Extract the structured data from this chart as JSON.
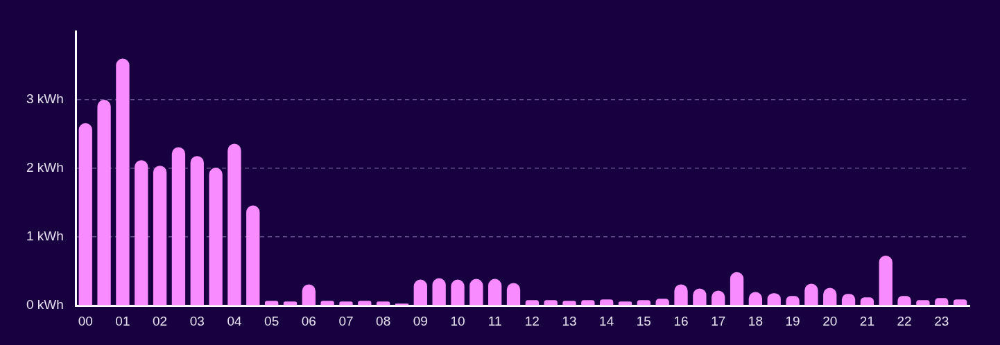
{
  "chart_data": {
    "type": "bar",
    "categories": [
      "00",
      null,
      "01",
      null,
      "02",
      null,
      "03",
      null,
      "04",
      null,
      "05",
      null,
      "06",
      null,
      "07",
      null,
      "08",
      null,
      "09",
      null,
      "10",
      null,
      "11",
      null,
      "12",
      null,
      "13",
      null,
      "14",
      null,
      "15",
      null,
      "16",
      null,
      "17",
      null,
      "18",
      null,
      "19",
      null,
      "20",
      null,
      "21",
      null,
      "22",
      null,
      "23",
      null
    ],
    "values": [
      2.66,
      3.0,
      3.6,
      2.12,
      2.04,
      2.31,
      2.18,
      2.01,
      2.36,
      1.46,
      0.07,
      0.06,
      0.31,
      0.07,
      0.06,
      0.07,
      0.06,
      0.03,
      0.38,
      0.4,
      0.38,
      0.39,
      0.39,
      0.33,
      0.08,
      0.08,
      0.07,
      0.08,
      0.09,
      0.06,
      0.08,
      0.1,
      0.31,
      0.25,
      0.22,
      0.49,
      0.2,
      0.18,
      0.14,
      0.32,
      0.26,
      0.17,
      0.12,
      0.73,
      0.14,
      0.08,
      0.11,
      0.09
    ],
    "color": "#f78bff",
    "ylim": [
      0,
      4
    ],
    "yticks": [
      {
        "value": 0,
        "label": "0 kWh"
      },
      {
        "value": 1,
        "label": "1 kWh"
      },
      {
        "value": 2,
        "label": "2 kWh"
      },
      {
        "value": 3,
        "label": "3 kWh"
      }
    ],
    "grid": "y"
  }
}
